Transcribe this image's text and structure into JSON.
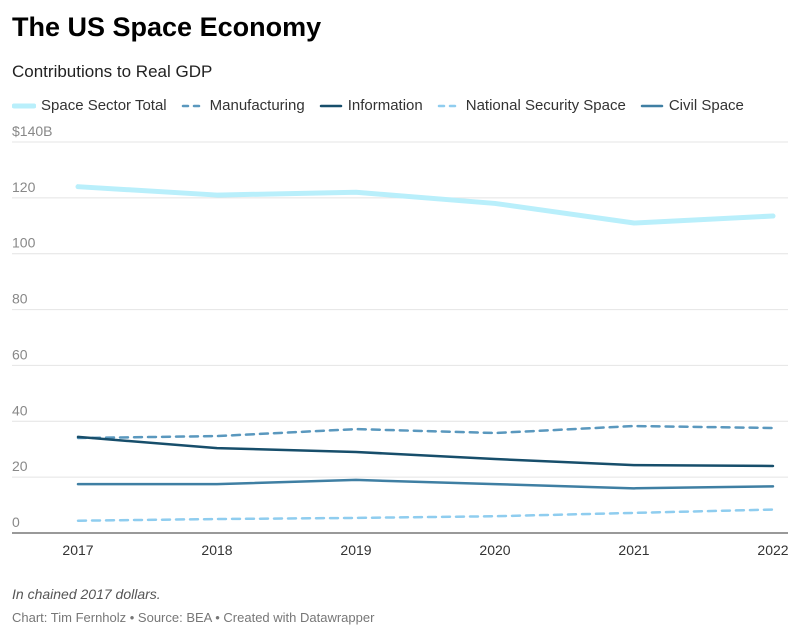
{
  "title": "The US Space Economy",
  "subtitle": "Contributions to Real GDP",
  "note": "In chained 2017 dollars.",
  "credit": "Chart: Tim Fernholz • Source: BEA • Created with Datawrapper",
  "chart_data": {
    "type": "line",
    "x": [
      2017,
      2018,
      2019,
      2020,
      2021,
      2022
    ],
    "ylim": [
      0,
      140
    ],
    "yticks": [
      "0",
      "20",
      "40",
      "60",
      "80",
      "100",
      "120",
      "$140B"
    ],
    "xticks": [
      "2017",
      "2018",
      "2019",
      "2020",
      "2021",
      "2022"
    ],
    "grid": true,
    "legend": "top",
    "series": [
      {
        "name": "Space Sector Total",
        "values": [
          124,
          121,
          122,
          118,
          111,
          113.5
        ],
        "color": "#b9effb",
        "dash": false,
        "width": 5
      },
      {
        "name": "Manufacturing",
        "values": [
          34,
          34.7,
          37.2,
          35.8,
          38.3,
          37.6
        ],
        "color": "#5a98be",
        "dash": true,
        "width": 2.5
      },
      {
        "name": "Information",
        "values": [
          34.4,
          30.4,
          29,
          26.5,
          24.3,
          24
        ],
        "color": "#174e6b",
        "dash": false,
        "width": 2.5
      },
      {
        "name": "National Security Space",
        "values": [
          4.4,
          5,
          5.4,
          6,
          7.2,
          8.4
        ],
        "color": "#8fcdef",
        "dash": true,
        "width": 2.5
      },
      {
        "name": "Civil Space",
        "values": [
          17.5,
          17.5,
          19,
          17.5,
          16,
          16.7
        ],
        "color": "#3f7fa3",
        "dash": false,
        "width": 2.5
      }
    ]
  }
}
